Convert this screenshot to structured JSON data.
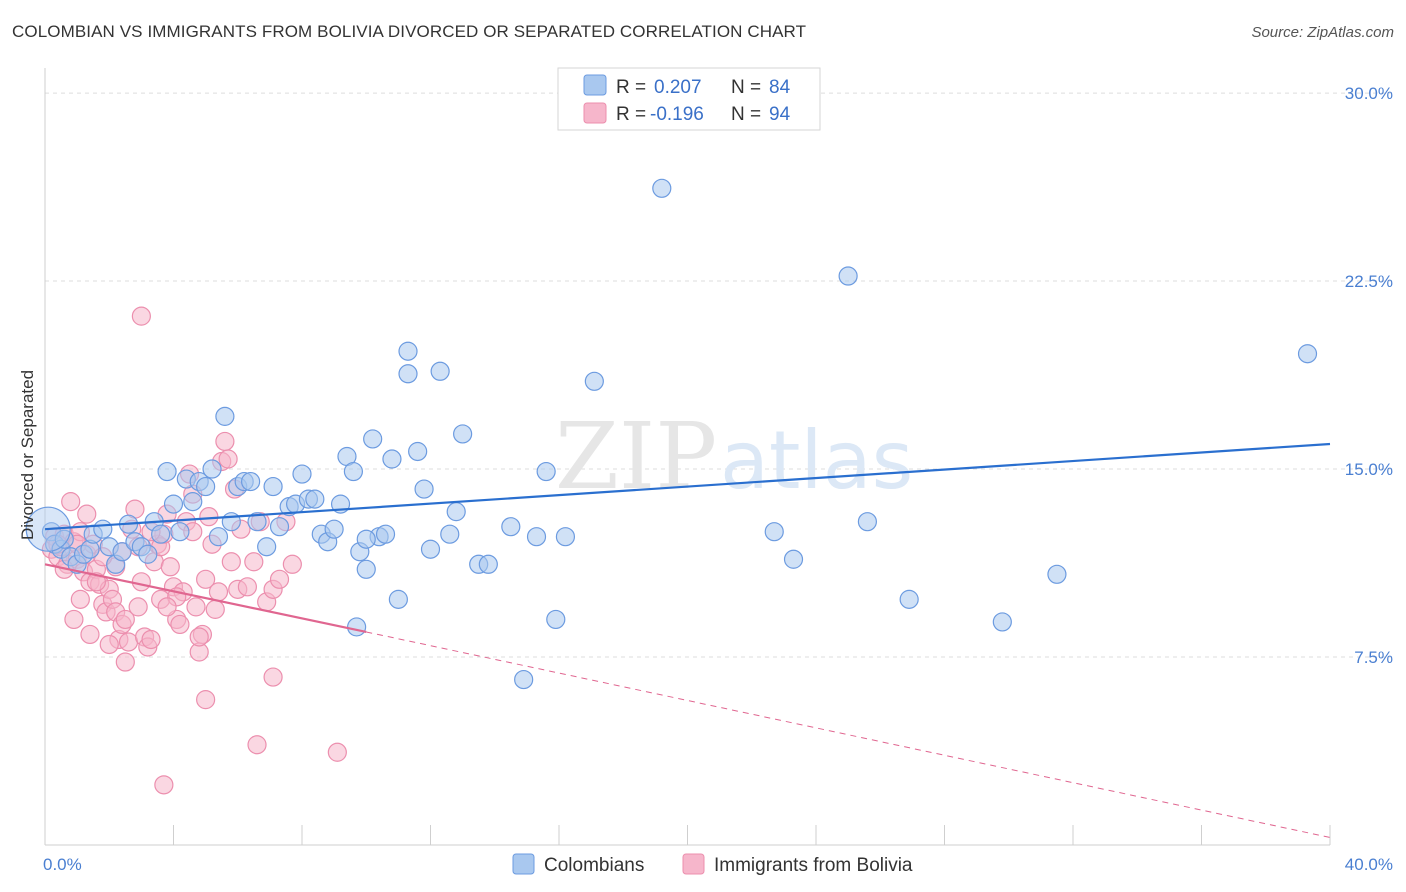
{
  "title": "COLOMBIAN VS IMMIGRANTS FROM BOLIVIA DIVORCED OR SEPARATED CORRELATION CHART",
  "source": "Source: ZipAtlas.com",
  "watermark": {
    "zip": "ZIP",
    "atlas": "atlas"
  },
  "colors": {
    "blue_fill": "#a9c8ef",
    "blue_stroke": "#6c9be0",
    "blue_line": "#2a6fcf",
    "pink_fill": "#f6b6cb",
    "pink_stroke": "#ec8fae",
    "pink_line": "#e06690",
    "tick_label": "#4a7fd1",
    "grid": "#dddddd"
  },
  "legend": {
    "rows": [
      {
        "r_label": "R =",
        "r_value": "0.207",
        "n_label": "N =",
        "n_value": "84"
      },
      {
        "r_label": "R =",
        "r_value": "-0.196",
        "n_label": "N =",
        "n_value": "94"
      }
    ]
  },
  "bottom_legend": [
    "Colombians",
    "Immigrants from Bolivia"
  ],
  "chart_data": {
    "type": "scatter",
    "xlabel": "",
    "ylabel": "Divorced or Separated",
    "xlim": [
      0,
      40
    ],
    "ylim": [
      0,
      31
    ],
    "x_tick_labels": [
      "0.0%",
      "40.0%"
    ],
    "y_ticks": [
      7.5,
      15.0,
      22.5,
      30.0
    ],
    "y_tick_labels": [
      "7.5%",
      "15.0%",
      "22.5%",
      "30.0%"
    ],
    "grid": true,
    "legend_position": "top-center",
    "series": [
      {
        "name": "Colombians",
        "trend": {
          "x": [
            0,
            40
          ],
          "y": [
            12.6,
            16.0
          ],
          "dashed_extension": false
        },
        "points": [
          [
            0.2,
            12.5
          ],
          [
            0.3,
            12.0
          ],
          [
            0.5,
            11.8
          ],
          [
            0.6,
            12.2
          ],
          [
            0.8,
            11.5
          ],
          [
            1.0,
            11.2
          ],
          [
            1.2,
            11.6
          ],
          [
            1.4,
            11.8
          ],
          [
            1.5,
            12.4
          ],
          [
            1.8,
            12.6
          ],
          [
            2.0,
            11.9
          ],
          [
            2.2,
            11.2
          ],
          [
            2.4,
            11.7
          ],
          [
            2.6,
            12.8
          ],
          [
            2.8,
            12.1
          ],
          [
            3.0,
            11.9
          ],
          [
            3.2,
            11.6
          ],
          [
            3.4,
            12.9
          ],
          [
            3.6,
            12.4
          ],
          [
            3.8,
            14.9
          ],
          [
            4.0,
            13.6
          ],
          [
            4.2,
            12.5
          ],
          [
            4.4,
            14.6
          ],
          [
            4.6,
            13.7
          ],
          [
            4.8,
            14.5
          ],
          [
            5.0,
            14.3
          ],
          [
            5.2,
            15.0
          ],
          [
            5.4,
            12.3
          ],
          [
            5.6,
            17.1
          ],
          [
            5.8,
            12.9
          ],
          [
            6.0,
            14.3
          ],
          [
            6.2,
            14.5
          ],
          [
            6.4,
            14.5
          ],
          [
            6.6,
            12.9
          ],
          [
            6.9,
            11.9
          ],
          [
            7.1,
            14.3
          ],
          [
            7.3,
            12.7
          ],
          [
            7.6,
            13.5
          ],
          [
            7.8,
            13.6
          ],
          [
            8.0,
            14.8
          ],
          [
            8.2,
            13.8
          ],
          [
            8.4,
            13.8
          ],
          [
            8.6,
            12.4
          ],
          [
            8.8,
            12.1
          ],
          [
            9.0,
            12.6
          ],
          [
            9.2,
            13.6
          ],
          [
            9.4,
            15.5
          ],
          [
            9.6,
            14.9
          ],
          [
            9.8,
            11.7
          ],
          [
            10.0,
            11.0
          ],
          [
            10.2,
            16.2
          ],
          [
            10.4,
            12.3
          ],
          [
            10.6,
            12.4
          ],
          [
            10.8,
            15.4
          ],
          [
            11.0,
            9.8
          ],
          [
            11.3,
            18.8
          ],
          [
            11.6,
            15.7
          ],
          [
            11.8,
            14.2
          ],
          [
            12.0,
            11.8
          ],
          [
            12.3,
            18.9
          ],
          [
            12.6,
            12.4
          ],
          [
            12.8,
            13.3
          ],
          [
            13.0,
            16.4
          ],
          [
            13.5,
            11.2
          ],
          [
            13.8,
            11.2
          ],
          [
            14.5,
            12.7
          ],
          [
            14.9,
            6.6
          ],
          [
            15.3,
            12.3
          ],
          [
            15.6,
            14.9
          ],
          [
            15.9,
            9.0
          ],
          [
            16.2,
            12.3
          ],
          [
            17.1,
            18.5
          ],
          [
            19.2,
            26.2
          ],
          [
            22.7,
            12.5
          ],
          [
            23.3,
            11.4
          ],
          [
            25.0,
            22.7
          ],
          [
            25.6,
            12.9
          ],
          [
            26.9,
            9.8
          ],
          [
            29.8,
            8.9
          ],
          [
            31.5,
            10.8
          ],
          [
            39.3,
            19.6
          ],
          [
            10.0,
            12.2
          ],
          [
            11.3,
            19.7
          ],
          [
            9.7,
            8.7
          ]
        ]
      },
      {
        "name": "Immigrants from Bolivia",
        "trend": {
          "x": [
            0,
            10
          ],
          "y": [
            11.2,
            8.5
          ],
          "dashed_extension": true,
          "dashed_to": [
            40,
            0.3
          ]
        },
        "points": [
          [
            0.2,
            11.8
          ],
          [
            0.3,
            12.3
          ],
          [
            0.4,
            11.5
          ],
          [
            0.5,
            11.9
          ],
          [
            0.6,
            12.4
          ],
          [
            0.7,
            11.2
          ],
          [
            0.8,
            13.7
          ],
          [
            0.9,
            12.1
          ],
          [
            1.0,
            11.4
          ],
          [
            1.1,
            12.5
          ],
          [
            1.2,
            10.9
          ],
          [
            1.3,
            11.6
          ],
          [
            1.4,
            10.5
          ],
          [
            1.5,
            12.0
          ],
          [
            1.6,
            11.0
          ],
          [
            1.7,
            10.4
          ],
          [
            1.8,
            9.6
          ],
          [
            1.9,
            9.3
          ],
          [
            2.0,
            10.2
          ],
          [
            2.1,
            9.8
          ],
          [
            2.2,
            9.3
          ],
          [
            2.3,
            8.2
          ],
          [
            2.4,
            8.8
          ],
          [
            2.5,
            9.0
          ],
          [
            2.6,
            8.1
          ],
          [
            2.7,
            12.6
          ],
          [
            2.8,
            13.4
          ],
          [
            2.9,
            11.9
          ],
          [
            3.0,
            10.5
          ],
          [
            3.1,
            8.3
          ],
          [
            3.2,
            7.9
          ],
          [
            3.3,
            8.2
          ],
          [
            3.4,
            11.3
          ],
          [
            3.5,
            12.0
          ],
          [
            3.6,
            11.9
          ],
          [
            3.7,
            12.4
          ],
          [
            3.8,
            13.2
          ],
          [
            3.9,
            11.1
          ],
          [
            4.0,
            10.3
          ],
          [
            4.1,
            9.0
          ],
          [
            4.2,
            8.8
          ],
          [
            4.3,
            10.1
          ],
          [
            4.4,
            12.9
          ],
          [
            4.5,
            14.8
          ],
          [
            4.6,
            12.5
          ],
          [
            4.7,
            9.5
          ],
          [
            4.8,
            7.7
          ],
          [
            4.9,
            8.4
          ],
          [
            5.0,
            10.6
          ],
          [
            5.1,
            13.1
          ],
          [
            5.2,
            12.0
          ],
          [
            5.3,
            9.4
          ],
          [
            5.4,
            10.1
          ],
          [
            5.5,
            15.3
          ],
          [
            5.6,
            16.1
          ],
          [
            5.7,
            15.4
          ],
          [
            5.8,
            11.3
          ],
          [
            5.9,
            14.2
          ],
          [
            6.0,
            10.2
          ],
          [
            6.1,
            12.6
          ],
          [
            6.3,
            10.3
          ],
          [
            6.5,
            11.3
          ],
          [
            6.7,
            12.9
          ],
          [
            6.9,
            9.7
          ],
          [
            7.1,
            10.2
          ],
          [
            7.3,
            10.6
          ],
          [
            7.5,
            12.9
          ],
          [
            7.7,
            11.2
          ],
          [
            3.0,
            21.1
          ],
          [
            2.0,
            8.0
          ],
          [
            2.5,
            7.3
          ],
          [
            3.6,
            9.8
          ],
          [
            4.8,
            8.3
          ],
          [
            5.0,
            5.8
          ],
          [
            6.6,
            4.0
          ],
          [
            7.1,
            6.7
          ],
          [
            3.7,
            2.4
          ],
          [
            9.1,
            3.7
          ],
          [
            4.1,
            9.9
          ],
          [
            1.1,
            9.8
          ],
          [
            1.6,
            10.5
          ],
          [
            2.9,
            9.5
          ],
          [
            0.9,
            9.0
          ],
          [
            1.4,
            8.4
          ],
          [
            3.8,
            9.5
          ],
          [
            2.2,
            11.1
          ],
          [
            0.6,
            11.0
          ],
          [
            1.0,
            12.0
          ],
          [
            1.8,
            11.5
          ],
          [
            0.4,
            12.0
          ],
          [
            2.4,
            11.7
          ],
          [
            3.3,
            12.5
          ],
          [
            4.6,
            14.0
          ],
          [
            1.3,
            13.2
          ]
        ]
      }
    ]
  }
}
